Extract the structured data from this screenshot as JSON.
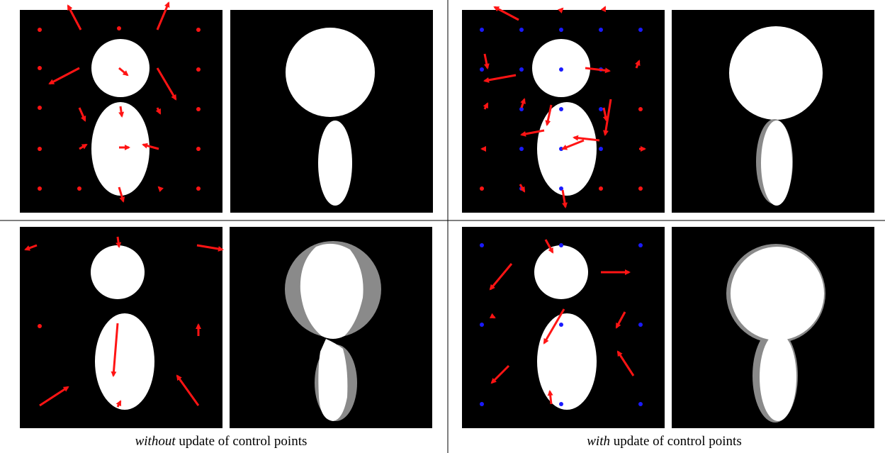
{
  "figure": {
    "captions": {
      "left": {
        "em": "without",
        "rest": " update of control points"
      },
      "right": {
        "em": "with",
        "rest": " update of control points"
      }
    },
    "colors": {
      "background": "#000000",
      "shape": "#ffffff",
      "arrow": "#ff1414",
      "control_point_fixed": "#1a1aff",
      "mismatch": "#8a8a8a",
      "separator": "#000000"
    },
    "panels": [
      {
        "id": "top-left-input",
        "kind": "input-with-arrows"
      },
      {
        "id": "top-left-result",
        "kind": "deformed-result"
      },
      {
        "id": "top-right-input",
        "kind": "input-with-arrows-and-fixed-points"
      },
      {
        "id": "top-right-result",
        "kind": "deformed-result"
      },
      {
        "id": "bottom-left-input",
        "kind": "input-with-arrows"
      },
      {
        "id": "bottom-left-result",
        "kind": "deformed-result-with-mismatch"
      },
      {
        "id": "bottom-right-input",
        "kind": "input-with-arrows-and-fixed-points"
      },
      {
        "id": "bottom-right-result",
        "kind": "deformed-result-with-mismatch"
      }
    ]
  }
}
